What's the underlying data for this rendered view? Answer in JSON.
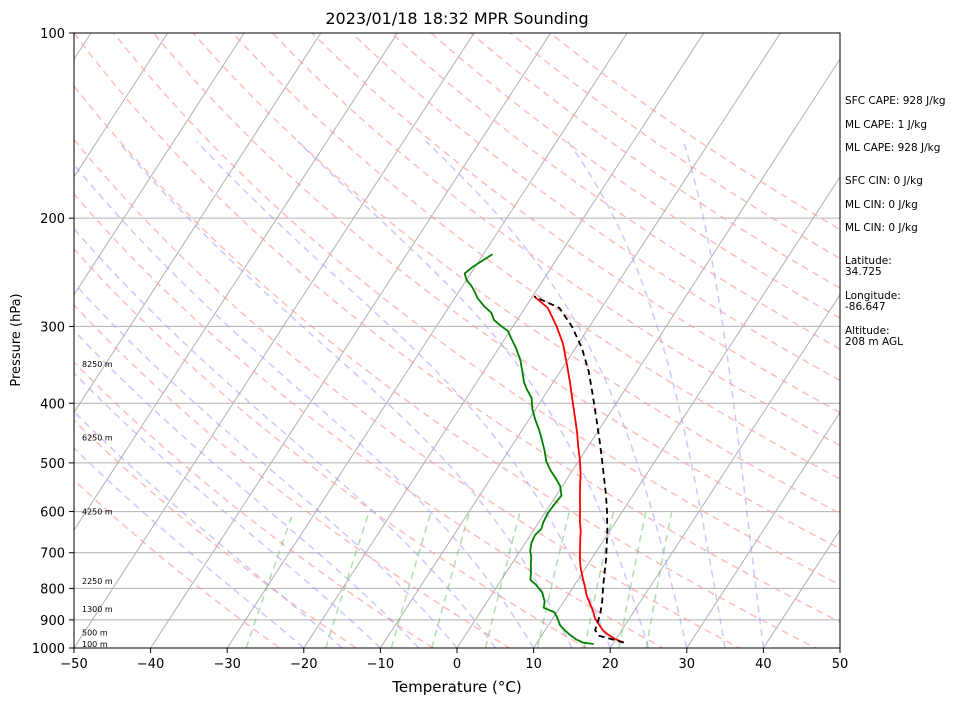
{
  "chart_data": {
    "type": "line",
    "title": "2023/01/18 18:32 MPR Sounding",
    "xlabel": "Temperature (°C)",
    "ylabel": "Pressure (hPa)",
    "xlim": [
      -50,
      50
    ],
    "ylim": [
      1000,
      100
    ],
    "y_scale": "log",
    "grid": true,
    "x_ticks": [
      -50,
      -40,
      -30,
      -20,
      -10,
      0,
      10,
      20,
      30,
      40,
      50
    ],
    "y_ticks": [
      1000,
      900,
      800,
      700,
      600,
      500,
      400,
      300,
      200,
      100
    ],
    "height_labels": [
      {
        "text": "100 m",
        "p": 986
      },
      {
        "text": "500 m",
        "p": 943
      },
      {
        "text": "1300 m",
        "p": 864
      },
      {
        "text": "2250 m",
        "p": 778
      },
      {
        "text": "4250 m",
        "p": 600
      },
      {
        "text": "6250 m",
        "p": 455
      },
      {
        "text": "8250 m",
        "p": 345
      }
    ],
    "info_text": [
      "SFC CAPE: 928 J/kg",
      "ML CAPE: 1 J/kg",
      "ML CAPE: 928 J/kg",
      "SFC CIN: 0 J/kg",
      "ML CIN: 0 J/kg",
      "ML CIN: 0 J/kg",
      "Latitude:",
      "34.725",
      "Longitude:",
      "-86.647",
      "Altitude:",
      "208 m AGL"
    ],
    "series": [
      {
        "name": "",
        "color": "#ff0000",
        "style": "solid",
        "points": [
          [
            21.3,
            980
          ],
          [
            19.8,
            966
          ],
          [
            18.5,
            950
          ],
          [
            17.5,
            935
          ],
          [
            16.5,
            915
          ],
          [
            15.5,
            895
          ],
          [
            14.6,
            870
          ],
          [
            13.5,
            845
          ],
          [
            12.4,
            820
          ],
          [
            11.5,
            795
          ],
          [
            10.5,
            770
          ],
          [
            9.5,
            745
          ],
          [
            8.6,
            720
          ],
          [
            7.8,
            695
          ],
          [
            7.0,
            670
          ],
          [
            6.2,
            645
          ],
          [
            5.2,
            620
          ],
          [
            4.3,
            595
          ],
          [
            3.3,
            570
          ],
          [
            2.3,
            545
          ],
          [
            1.3,
            520
          ],
          [
            0.1,
            495
          ],
          [
            -1.3,
            470
          ],
          [
            -2.7,
            445
          ],
          [
            -4.3,
            420
          ],
          [
            -6.0,
            395
          ],
          [
            -7.8,
            370
          ],
          [
            -9.8,
            345
          ],
          [
            -12.0,
            320
          ],
          [
            -14.3,
            300
          ],
          [
            -17.0,
            280
          ],
          [
            -19.8,
            268
          ]
        ]
      },
      {
        "name": "",
        "color": "#008000",
        "style": "solid",
        "points": [
          [
            17.5,
            985
          ],
          [
            16.0,
            980
          ],
          [
            14.8,
            968
          ],
          [
            13.5,
            950
          ],
          [
            12.5,
            935
          ],
          [
            11.5,
            918
          ],
          [
            10.6,
            895
          ],
          [
            9.7,
            875
          ],
          [
            7.9,
            860
          ],
          [
            7.5,
            840
          ],
          [
            6.9,
            825
          ],
          [
            6.4,
            812
          ],
          [
            5.0,
            790
          ],
          [
            3.8,
            775
          ],
          [
            3.2,
            752
          ],
          [
            2.5,
            730
          ],
          [
            2.0,
            712
          ],
          [
            1.3,
            695
          ],
          [
            0.8,
            675
          ],
          [
            0.6,
            655
          ],
          [
            0.9,
            640
          ],
          [
            0.6,
            625
          ],
          [
            0.4,
            605
          ],
          [
            0.5,
            585
          ],
          [
            0.7,
            565
          ],
          [
            -0.3,
            545
          ],
          [
            -1.5,
            530
          ],
          [
            -2.8,
            515
          ],
          [
            -4.2,
            497
          ],
          [
            -5.3,
            478
          ],
          [
            -6.5,
            460
          ],
          [
            -7.8,
            442
          ],
          [
            -9.2,
            425
          ],
          [
            -10.5,
            408
          ],
          [
            -11.5,
            392
          ],
          [
            -12.8,
            380
          ],
          [
            -13.8,
            370
          ],
          [
            -14.8,
            357
          ],
          [
            -16.2,
            340
          ],
          [
            -17.8,
            325
          ],
          [
            -19.3,
            313
          ],
          [
            -20.3,
            305
          ],
          [
            -21.5,
            300
          ],
          [
            -23.0,
            293
          ],
          [
            -24.0,
            285
          ],
          [
            -25.5,
            278
          ],
          [
            -27.0,
            270
          ],
          [
            -28.0,
            263
          ],
          [
            -29.0,
            257
          ],
          [
            -30.0,
            252
          ],
          [
            -30.8,
            246
          ],
          [
            -30.3,
            240
          ],
          [
            -29.5,
            234
          ],
          [
            -28.8,
            229
          ]
        ]
      },
      {
        "name": "",
        "color": "#000000",
        "style": "dashed",
        "points": [
          [
            21.3,
            980
          ],
          [
            17.5,
            955
          ],
          [
            16.5,
            935
          ],
          [
            16.2,
            910
          ],
          [
            15.8,
            880
          ],
          [
            15.0,
            840
          ],
          [
            14.0,
            800
          ],
          [
            13.0,
            760
          ],
          [
            12.0,
            720
          ],
          [
            10.8,
            680
          ],
          [
            9.5,
            640
          ],
          [
            8.0,
            600
          ],
          [
            6.5,
            565
          ],
          [
            4.8,
            530
          ],
          [
            3.0,
            495
          ],
          [
            1.0,
            460
          ],
          [
            -1.2,
            425
          ],
          [
            -3.6,
            390
          ],
          [
            -6.3,
            355
          ],
          [
            -9.2,
            325
          ],
          [
            -12.3,
            300
          ],
          [
            -15.5,
            280
          ],
          [
            -19.8,
            268
          ]
        ]
      }
    ]
  }
}
